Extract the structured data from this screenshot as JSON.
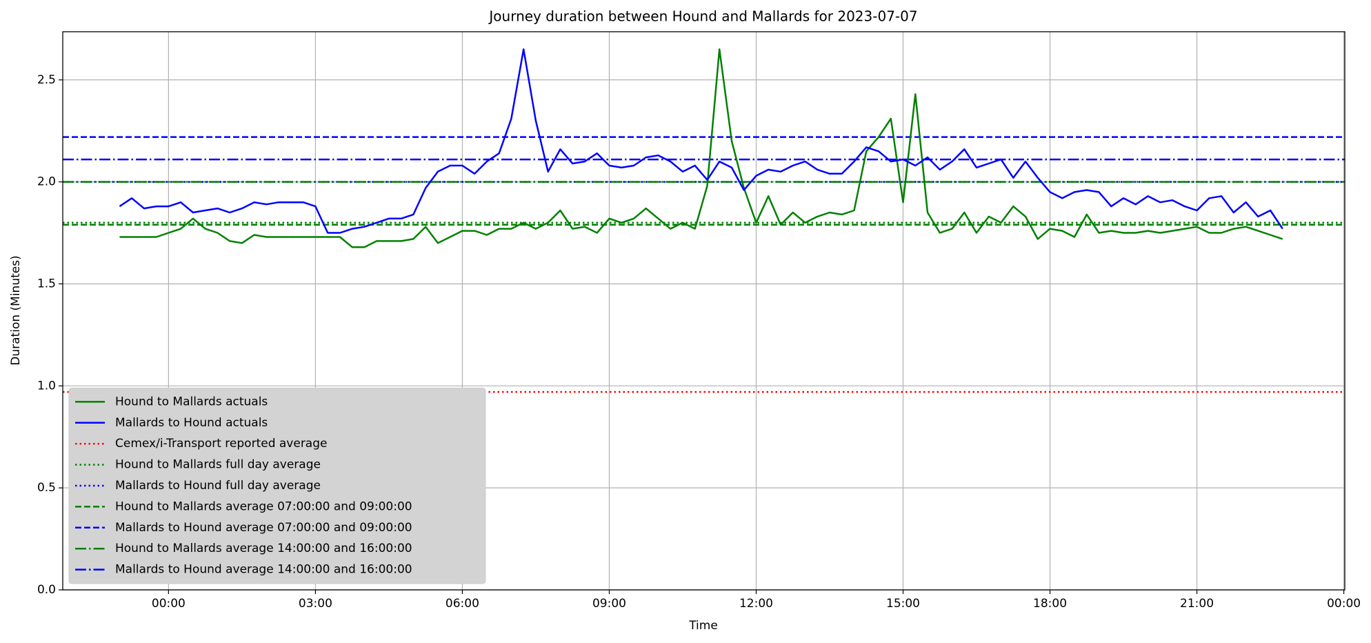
{
  "chart_data": {
    "type": "line",
    "title": "Journey duration between Hound and Mallards for 2023-07-07",
    "xlabel": "Time",
    "ylabel": "Duration  (Minutes)",
    "x": [
      -1,
      -0.75,
      -0.5,
      -0.25,
      0,
      0.25,
      0.5,
      0.75,
      1,
      1.25,
      1.5,
      1.75,
      2,
      2.25,
      2.5,
      2.75,
      3,
      3.25,
      3.5,
      3.75,
      4,
      4.25,
      4.5,
      4.75,
      5,
      5.25,
      5.5,
      5.75,
      6,
      6.25,
      6.5,
      6.75,
      7,
      7.25,
      7.5,
      7.75,
      8,
      8.25,
      8.5,
      8.75,
      9,
      9.25,
      9.5,
      9.75,
      10,
      10.25,
      10.5,
      10.75,
      11,
      11.25,
      11.5,
      11.75,
      12,
      12.25,
      12.5,
      12.75,
      13,
      13.25,
      13.5,
      13.75,
      14,
      14.25,
      14.5,
      14.75,
      15,
      15.25,
      15.5,
      15.75,
      16,
      16.25,
      16.5,
      16.75,
      17,
      17.25,
      17.5,
      17.75,
      18,
      18.25,
      18.5,
      18.75,
      19,
      19.25,
      19.5,
      19.75,
      20,
      20.25,
      20.5,
      20.75,
      21,
      21.25,
      21.5,
      21.75,
      22,
      22.25,
      22.5,
      22.75
    ],
    "series": [
      {
        "name": "Hound to Mallards actuals",
        "color": "#008000",
        "values": [
          1.73,
          1.73,
          1.73,
          1.73,
          1.75,
          1.77,
          1.82,
          1.77,
          1.75,
          1.71,
          1.7,
          1.74,
          1.73,
          1.73,
          1.73,
          1.73,
          1.73,
          1.73,
          1.73,
          1.68,
          1.68,
          1.71,
          1.71,
          1.71,
          1.72,
          1.78,
          1.7,
          1.73,
          1.76,
          1.76,
          1.74,
          1.77,
          1.77,
          1.8,
          1.77,
          1.8,
          1.86,
          1.77,
          1.78,
          1.75,
          1.82,
          1.8,
          1.82,
          1.87,
          1.82,
          1.77,
          1.8,
          1.77,
          1.98,
          2.65,
          2.2,
          1.97,
          1.8,
          1.93,
          1.79,
          1.85,
          1.8,
          1.83,
          1.85,
          1.84,
          1.86,
          2.15,
          2.22,
          2.31,
          1.9,
          2.43,
          1.85,
          1.75,
          1.77,
          1.85,
          1.75,
          1.83,
          1.8,
          1.88,
          1.83,
          1.72,
          1.77,
          1.76,
          1.73,
          1.84,
          1.75,
          1.76,
          1.75,
          1.75,
          1.76,
          1.75,
          1.76,
          1.77,
          1.78,
          1.75,
          1.75,
          1.77,
          1.78,
          1.76,
          1.74,
          1.72
        ]
      },
      {
        "name": "Mallards to Hound actuals",
        "color": "#0000ff",
        "values": [
          1.88,
          1.92,
          1.87,
          1.88,
          1.88,
          1.9,
          1.85,
          1.86,
          1.87,
          1.85,
          1.87,
          1.9,
          1.89,
          1.9,
          1.9,
          1.9,
          1.88,
          1.75,
          1.75,
          1.77,
          1.78,
          1.8,
          1.82,
          1.82,
          1.84,
          1.97,
          2.05,
          2.08,
          2.08,
          2.04,
          2.1,
          2.14,
          2.31,
          2.65,
          2.3,
          2.05,
          2.16,
          2.09,
          2.1,
          2.14,
          2.08,
          2.07,
          2.08,
          2.12,
          2.13,
          2.1,
          2.05,
          2.08,
          2.01,
          2.1,
          2.07,
          1.96,
          2.03,
          2.06,
          2.05,
          2.08,
          2.1,
          2.06,
          2.04,
          2.04,
          2.1,
          2.17,
          2.15,
          2.1,
          2.11,
          2.08,
          2.12,
          2.06,
          2.1,
          2.16,
          2.07,
          2.09,
          2.11,
          2.02,
          2.1,
          2.02,
          1.95,
          1.92,
          1.95,
          1.96,
          1.95,
          1.88,
          1.92,
          1.89,
          1.93,
          1.9,
          1.91,
          1.88,
          1.86,
          1.92,
          1.93,
          1.85,
          1.9,
          1.83,
          1.86,
          1.77
        ]
      }
    ],
    "hlines": [
      {
        "name": "Cemex/i-Transport reported average",
        "color": "#ff0000",
        "linestyle": "dotted",
        "value": 0.97
      },
      {
        "name": "Hound to Mallards full day average",
        "color": "#008000",
        "linestyle": "dotted",
        "value": 1.8
      },
      {
        "name": "Mallards to Hound full day average",
        "color": "#0000ff",
        "linestyle": "dotted",
        "value": 2.0
      },
      {
        "name": "Hound to Mallards average 07:00:00 and 09:00:00",
        "color": "#008000",
        "linestyle": "dashed",
        "value": 1.79
      },
      {
        "name": "Mallards to Hound average 07:00:00 and 09:00:00",
        "color": "#0000ff",
        "linestyle": "dashed",
        "value": 2.22
      },
      {
        "name": "Hound to Mallards average 14:00:00 and 16:00:00",
        "color": "#008000",
        "linestyle": "dashdot",
        "value": 2.0
      },
      {
        "name": "Mallards to Hound average 14:00:00 and 16:00:00",
        "color": "#0000ff",
        "linestyle": "dashdot",
        "value": 2.11
      }
    ],
    "xlim": [
      -2.16,
      24.02
    ],
    "ylim": [
      0,
      2.736
    ],
    "xticks": [
      {
        "value": 0,
        "label": "00:00"
      },
      {
        "value": 3,
        "label": "03:00"
      },
      {
        "value": 6,
        "label": "06:00"
      },
      {
        "value": 9,
        "label": "09:00"
      },
      {
        "value": 12,
        "label": "12:00"
      },
      {
        "value": 15,
        "label": "15:00"
      },
      {
        "value": 18,
        "label": "18:00"
      },
      {
        "value": 21,
        "label": "21:00"
      },
      {
        "value": 24,
        "label": "00:00"
      }
    ],
    "yticks": [
      {
        "value": 0,
        "label": "0.0"
      },
      0.5,
      {
        "value": 1,
        "label": "1.0"
      },
      1.5,
      {
        "value": 2,
        "label": "2.0"
      },
      2.5
    ],
    "grid": true,
    "legend": "lower left"
  }
}
